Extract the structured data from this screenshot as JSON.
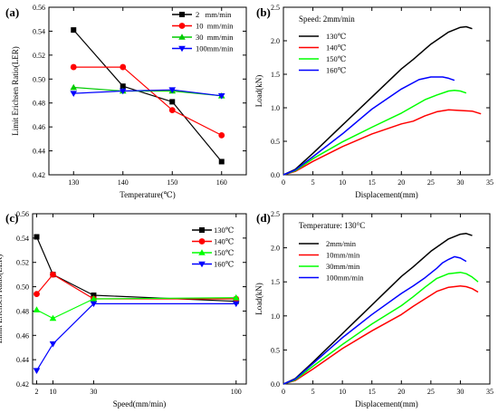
{
  "chart_data": [
    {
      "panel": "(a)",
      "type": "line",
      "title": "",
      "xlabel": "Temperature(℃)",
      "ylabel": "Limit Erichsen Ratio(LER)",
      "xlim": [
        125,
        165
      ],
      "ylim": [
        0.42,
        0.56
      ],
      "xticks": [
        130,
        140,
        150,
        160
      ],
      "yticks": [
        0.42,
        0.44,
        0.46,
        0.48,
        0.5,
        0.52,
        0.54,
        0.56
      ],
      "ytick_labels": [
        "0.42",
        "0.44",
        "0.46",
        "0.48",
        "0.50",
        "0.52",
        "0.54",
        "0.56"
      ],
      "legend_position": "top-right",
      "x": [
        130,
        140,
        150,
        160
      ],
      "series": [
        {
          "name": "2   mm/min",
          "marker": "square",
          "color": "#000000",
          "values": [
            0.541,
            0.494,
            0.481,
            0.431
          ]
        },
        {
          "name": "10  mm/min",
          "marker": "circle",
          "color": "#ff0000",
          "values": [
            0.51,
            0.51,
            0.474,
            0.453
          ]
        },
        {
          "name": "30  mm/min",
          "marker": "triangle-up",
          "color": "#00cc00",
          "values": [
            0.493,
            0.49,
            0.49,
            0.486
          ]
        },
        {
          "name": "100mm/min",
          "marker": "triangle-down",
          "color": "#0000ff",
          "values": [
            0.488,
            0.49,
            0.491,
            0.486
          ]
        }
      ]
    },
    {
      "panel": "(b)",
      "type": "line",
      "title": "",
      "annotation": "Speed: 2mm/min",
      "xlabel": "Displacement(mm)",
      "ylabel": "Load(kN)",
      "xlim": [
        0,
        35
      ],
      "ylim": [
        0,
        2.5
      ],
      "xticks": [
        0,
        5,
        10,
        15,
        20,
        25,
        30,
        35
      ],
      "yticks": [
        0.0,
        0.5,
        1.0,
        1.5,
        2.0,
        2.5
      ],
      "ytick_labels": [
        "0.0",
        "0.5",
        "1.0",
        "1.5",
        "2.0",
        "2.5"
      ],
      "legend_position": "top-left",
      "series": [
        {
          "name": "130℃",
          "color": "#000000",
          "x": [
            0,
            2,
            5,
            10,
            15,
            20,
            22,
            25,
            28,
            30,
            31,
            32
          ],
          "values": [
            0,
            0.08,
            0.32,
            0.74,
            1.16,
            1.58,
            1.72,
            1.95,
            2.13,
            2.2,
            2.21,
            2.18
          ]
        },
        {
          "name": "140℃",
          "color": "#ff0000",
          "x": [
            0,
            2,
            5,
            10,
            15,
            20,
            22,
            24,
            26,
            28,
            30,
            32,
            33.5
          ],
          "values": [
            0,
            0.05,
            0.2,
            0.42,
            0.61,
            0.76,
            0.8,
            0.88,
            0.94,
            0.97,
            0.96,
            0.95,
            0.91
          ]
        },
        {
          "name": "150℃",
          "color": "#00ff00",
          "x": [
            0,
            2,
            5,
            10,
            15,
            20,
            22,
            24,
            26,
            28,
            29,
            30,
            31
          ],
          "values": [
            0,
            0.06,
            0.24,
            0.49,
            0.71,
            0.92,
            1.02,
            1.12,
            1.19,
            1.25,
            1.26,
            1.25,
            1.22
          ]
        },
        {
          "name": "160℃",
          "color": "#0000ff",
          "x": [
            0,
            2,
            5,
            10,
            15,
            20,
            23,
            25,
            27,
            28,
            29
          ],
          "values": [
            0,
            0.07,
            0.27,
            0.61,
            0.98,
            1.28,
            1.42,
            1.46,
            1.46,
            1.44,
            1.41
          ]
        }
      ]
    },
    {
      "panel": "(c)",
      "type": "line",
      "title": "",
      "xlabel": "Speed(mm/min)",
      "ylabel": "Limit Erichsen Ratio(LER)",
      "xlim": [
        0,
        105
      ],
      "ylim": [
        0.42,
        0.56
      ],
      "xticks": [
        2,
        10,
        30,
        100
      ],
      "yticks": [
        0.42,
        0.44,
        0.46,
        0.48,
        0.5,
        0.52,
        0.54,
        0.56
      ],
      "ytick_labels": [
        "0.42",
        "0.44",
        "0.46",
        "0.48",
        "0.50",
        "0.52",
        "0.54",
        "0.56"
      ],
      "legend_position": "top-right",
      "x": [
        2,
        10,
        30,
        100
      ],
      "series": [
        {
          "name": "130℃",
          "marker": "square",
          "color": "#000000",
          "values": [
            0.541,
            0.51,
            0.493,
            0.488
          ]
        },
        {
          "name": "140℃",
          "marker": "circle",
          "color": "#ff0000",
          "values": [
            0.494,
            0.51,
            0.49,
            0.49
          ]
        },
        {
          "name": "150℃",
          "marker": "triangle-up",
          "color": "#00ff00",
          "values": [
            0.481,
            0.474,
            0.49,
            0.491
          ]
        },
        {
          "name": "160℃",
          "marker": "triangle-down",
          "color": "#0000ff",
          "values": [
            0.431,
            0.453,
            0.486,
            0.486
          ]
        }
      ]
    },
    {
      "panel": "(d)",
      "type": "line",
      "title": "",
      "annotation": "Temperature: 130°C",
      "xlabel": "Displacement(mm)",
      "ylabel": "Load(kN)",
      "xlim": [
        0,
        35
      ],
      "ylim": [
        0,
        2.5
      ],
      "xticks": [
        0,
        5,
        10,
        15,
        20,
        25,
        30,
        35
      ],
      "yticks": [
        0.0,
        0.5,
        1.0,
        1.5,
        2.0,
        2.5
      ],
      "ytick_labels": [
        "0.0",
        "0.5",
        "1.0",
        "1.5",
        "2.0",
        "2.5"
      ],
      "legend_position": "top-left",
      "series": [
        {
          "name": "2mm/min",
          "color": "#000000",
          "x": [
            0,
            2,
            5,
            10,
            15,
            20,
            22,
            25,
            28,
            30,
            31,
            32
          ],
          "values": [
            0,
            0.08,
            0.32,
            0.74,
            1.16,
            1.58,
            1.72,
            1.95,
            2.13,
            2.2,
            2.21,
            2.18
          ]
        },
        {
          "name": "10mm/min",
          "color": "#ff0000",
          "x": [
            0,
            2,
            5,
            10,
            15,
            20,
            22,
            24,
            26,
            28,
            30,
            31,
            32,
            33
          ],
          "values": [
            0,
            0.05,
            0.22,
            0.52,
            0.78,
            1.02,
            1.14,
            1.25,
            1.36,
            1.42,
            1.44,
            1.43,
            1.4,
            1.35
          ]
        },
        {
          "name": "30mm/min",
          "color": "#00ff00",
          "x": [
            0,
            2,
            5,
            10,
            15,
            20,
            22,
            24,
            26,
            28,
            30,
            31,
            32,
            33
          ],
          "values": [
            0,
            0.06,
            0.26,
            0.58,
            0.88,
            1.15,
            1.28,
            1.42,
            1.55,
            1.62,
            1.64,
            1.62,
            1.57,
            1.5
          ]
        },
        {
          "name": "100mm/min",
          "color": "#0000ff",
          "x": [
            0,
            2,
            5,
            10,
            15,
            20,
            22,
            24,
            26,
            27,
            28,
            29,
            30,
            31
          ],
          "values": [
            0,
            0.07,
            0.3,
            0.68,
            1.02,
            1.33,
            1.44,
            1.56,
            1.7,
            1.78,
            1.83,
            1.87,
            1.85,
            1.8
          ]
        }
      ]
    }
  ]
}
